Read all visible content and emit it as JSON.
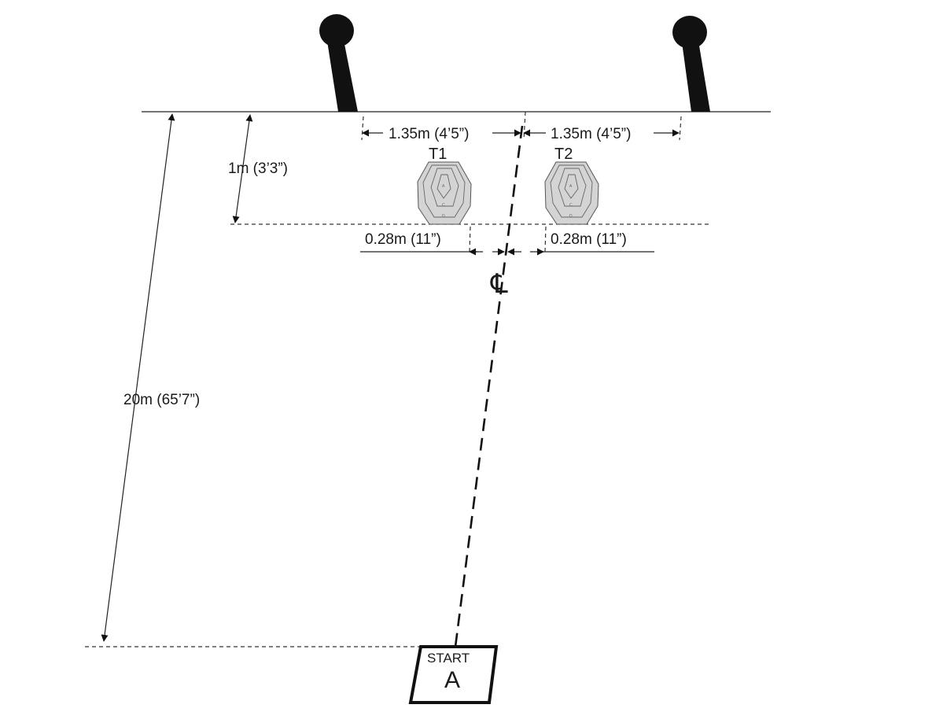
{
  "dimensions": {
    "stand_spacing_left": "1.35m (4’5”)",
    "stand_spacing_right": "1.35m (4’5”)",
    "fault_line_depth": "1m (3’3”)",
    "target_gap_left": "0.28m (11”)",
    "target_gap_right": "0.28m (11”)",
    "range_distance": "20m (65’7”)"
  },
  "targets": [
    {
      "label": "T1",
      "zones": [
        "A",
        "C",
        "D"
      ]
    },
    {
      "label": "T2",
      "zones": [
        "A",
        "C",
        "D"
      ]
    }
  ],
  "centerline_symbol": "℄",
  "start_box": {
    "label": "START",
    "position": "A"
  },
  "colors": {
    "ink": "#1a1a1a",
    "target_fill": "#d4d4d4",
    "stand_fill": "#111111"
  }
}
